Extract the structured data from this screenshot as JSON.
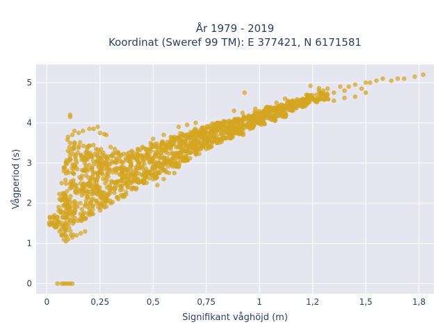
{
  "chart_data": {
    "type": "scatter",
    "title_line1": "År 1979 - 2019",
    "title_line2": "Koordinat (Sweref 99 TM): E 377421, N 6171581",
    "xlabel": "Signifikant våghöjd (m)",
    "ylabel": "Vågperiod (s)",
    "xlim": [
      -0.05,
      1.82
    ],
    "ylim": [
      -0.25,
      5.45
    ],
    "x_ticks": [
      0,
      0.25,
      0.5,
      0.75,
      1,
      1.25,
      1.5,
      1.75
    ],
    "x_tick_labels": [
      "0",
      "0,25",
      "0,5",
      "0,75",
      "1",
      "1,2",
      "1,5",
      "1,8"
    ],
    "y_ticks": [
      0,
      1,
      2,
      3,
      4,
      5
    ],
    "y_tick_labels": [
      "0",
      "1",
      "2",
      "3",
      "4",
      "5"
    ],
    "grid": true,
    "marker_color": "#D4A520",
    "plot_bg": "#E5E6F0",
    "points": [
      [
        0.05,
        0
      ],
      [
        0.07,
        0
      ],
      [
        0.08,
        0
      ],
      [
        0.09,
        0
      ],
      [
        0.1,
        0
      ],
      [
        0.11,
        0
      ],
      [
        0.12,
        0
      ],
      [
        0.03,
        1.5
      ],
      [
        0.04,
        1.4
      ],
      [
        0.05,
        1.55
      ],
      [
        0.06,
        1.3
      ],
      [
        0.07,
        1.2
      ],
      [
        0.08,
        1.1
      ],
      [
        0.09,
        1.05
      ],
      [
        0.1,
        1.1
      ],
      [
        0.12,
        1.15
      ],
      [
        0.14,
        1.2
      ],
      [
        0.16,
        1.25
      ],
      [
        0.18,
        1.3
      ],
      [
        0.06,
        2.1
      ],
      [
        0.07,
        2.5
      ],
      [
        0.08,
        2.8
      ],
      [
        0.09,
        3.0
      ],
      [
        0.1,
        3.3
      ],
      [
        0.11,
        3.5
      ],
      [
        0.12,
        3.7
      ],
      [
        0.13,
        3.8
      ],
      [
        0.11,
        4.15
      ],
      [
        0.11,
        4.2
      ],
      [
        0.1,
        3.65
      ],
      [
        0.15,
        3.75
      ],
      [
        0.17,
        3.8
      ],
      [
        0.2,
        3.85
      ],
      [
        0.22,
        3.85
      ],
      [
        0.24,
        3.9
      ],
      [
        0.25,
        3.75
      ],
      [
        0.27,
        3.72
      ],
      [
        0.28,
        3.7
      ],
      [
        0.3,
        3.4
      ],
      [
        0.32,
        3.35
      ],
      [
        0.35,
        3.2
      ],
      [
        0.4,
        3.3
      ],
      [
        0.45,
        3.4
      ],
      [
        0.5,
        3.6
      ],
      [
        0.55,
        3.7
      ],
      [
        0.6,
        3.65
      ],
      [
        0.62,
        3.9
      ],
      [
        0.66,
        3.95
      ],
      [
        0.7,
        4.0
      ],
      [
        0.3,
        2.0
      ],
      [
        0.33,
        2.15
      ],
      [
        0.36,
        2.2
      ],
      [
        0.4,
        2.35
      ],
      [
        0.45,
        2.55
      ],
      [
        0.5,
        2.7
      ],
      [
        0.55,
        2.85
      ],
      [
        0.6,
        2.95
      ],
      [
        0.65,
        3.1
      ],
      [
        0.7,
        3.25
      ],
      [
        0.75,
        3.35
      ],
      [
        0.8,
        3.5
      ],
      [
        0.52,
        2.45
      ],
      [
        0.55,
        2.6
      ],
      [
        0.6,
        2.75
      ],
      [
        0.62,
        2.9
      ],
      [
        0.85,
        3.75
      ],
      [
        0.88,
        4.3
      ],
      [
        0.9,
        4.0
      ],
      [
        0.92,
        4.25
      ],
      [
        0.93,
        4.75
      ],
      [
        0.95,
        4.1
      ],
      [
        0.98,
        4.35
      ],
      [
        1.0,
        4.15
      ],
      [
        1.02,
        4.3
      ],
      [
        0.75,
        3.55
      ],
      [
        0.78,
        3.7
      ],
      [
        0.82,
        3.75
      ],
      [
        0.85,
        3.8
      ],
      [
        0.9,
        3.9
      ],
      [
        0.95,
        3.95
      ],
      [
        1.05,
        4.3
      ],
      [
        1.08,
        4.5
      ],
      [
        1.1,
        4.45
      ],
      [
        1.12,
        4.6
      ],
      [
        1.15,
        4.5
      ],
      [
        1.2,
        4.55
      ],
      [
        1.22,
        4.7
      ],
      [
        1.25,
        4.6
      ],
      [
        1.28,
        4.8
      ],
      [
        1.3,
        4.7
      ],
      [
        1.32,
        4.85
      ],
      [
        1.35,
        4.75
      ],
      [
        1.38,
        4.9
      ],
      [
        1.4,
        4.8
      ],
      [
        1.42,
        4.9
      ],
      [
        1.45,
        4.95
      ],
      [
        1.48,
        4.85
      ],
      [
        1.5,
        5.0
      ],
      [
        1.52,
        5.0
      ],
      [
        1.55,
        5.05
      ],
      [
        1.58,
        5.1
      ],
      [
        1.62,
        5.05
      ],
      [
        1.65,
        5.1
      ],
      [
        1.68,
        5.1
      ],
      [
        1.73,
        5.15
      ],
      [
        1.77,
        5.2
      ],
      [
        1.24,
        4.92
      ],
      [
        1.28,
        4.86
      ],
      [
        1.3,
        4.8
      ],
      [
        1.35,
        4.55
      ],
      [
        1.4,
        4.62
      ],
      [
        1.45,
        4.65
      ],
      [
        1.5,
        4.75
      ]
    ],
    "bands": [
      [
        0.03,
        1.35,
        1.7,
        0.25
      ],
      [
        0.08,
        1.2,
        2.3,
        0.5
      ],
      [
        0.1,
        1.15,
        3.1,
        0.5
      ],
      [
        0.12,
        1.3,
        3.6,
        0.5
      ],
      [
        0.15,
        1.45,
        3.55,
        0.5
      ],
      [
        0.18,
        1.55,
        3.5,
        0.5
      ],
      [
        0.2,
        1.7,
        3.45,
        0.5
      ],
      [
        0.23,
        1.8,
        3.4,
        0.55
      ],
      [
        0.26,
        1.9,
        3.35,
        0.6
      ],
      [
        0.3,
        2.0,
        3.3,
        0.62
      ],
      [
        0.35,
        2.1,
        3.3,
        0.65
      ],
      [
        0.4,
        2.3,
        3.3,
        0.68
      ],
      [
        0.45,
        2.5,
        3.4,
        0.68
      ],
      [
        0.5,
        2.6,
        3.5,
        0.7
      ],
      [
        0.55,
        2.75,
        3.6,
        0.72
      ],
      [
        0.6,
        2.9,
        3.65,
        0.72
      ],
      [
        0.65,
        3.05,
        3.75,
        0.72
      ],
      [
        0.7,
        3.2,
        3.85,
        0.72
      ],
      [
        0.75,
        3.35,
        3.95,
        0.72
      ],
      [
        0.8,
        3.5,
        4.0,
        0.72
      ],
      [
        0.85,
        3.6,
        4.05,
        0.7
      ],
      [
        0.9,
        3.7,
        4.1,
        0.68
      ],
      [
        0.95,
        3.85,
        4.2,
        0.66
      ],
      [
        1.0,
        3.95,
        4.3,
        0.64
      ],
      [
        1.05,
        4.05,
        4.4,
        0.6
      ],
      [
        1.1,
        4.15,
        4.45,
        0.55
      ],
      [
        1.15,
        4.3,
        4.55,
        0.5
      ],
      [
        1.2,
        4.4,
        4.6,
        0.4
      ],
      [
        1.25,
        4.5,
        4.7,
        0.3
      ],
      [
        1.3,
        4.55,
        4.75,
        0.25
      ]
    ]
  }
}
